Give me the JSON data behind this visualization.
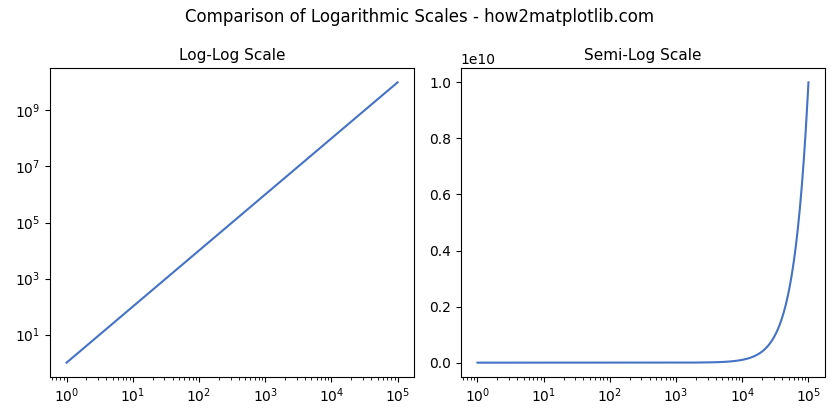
{
  "suptitle": "Comparison of Logarithmic Scales - how2matplotlib.com",
  "suptitle_fontsize": 12,
  "subplot1_title": "Log-Log Scale",
  "subplot2_title": "Semi-Log Scale",
  "line_color": "#4472c4",
  "line_width": 1.5,
  "n_points": 500,
  "background_color": "#ffffff",
  "fig_width": 8.4,
  "fig_height": 4.2,
  "dpi": 100
}
